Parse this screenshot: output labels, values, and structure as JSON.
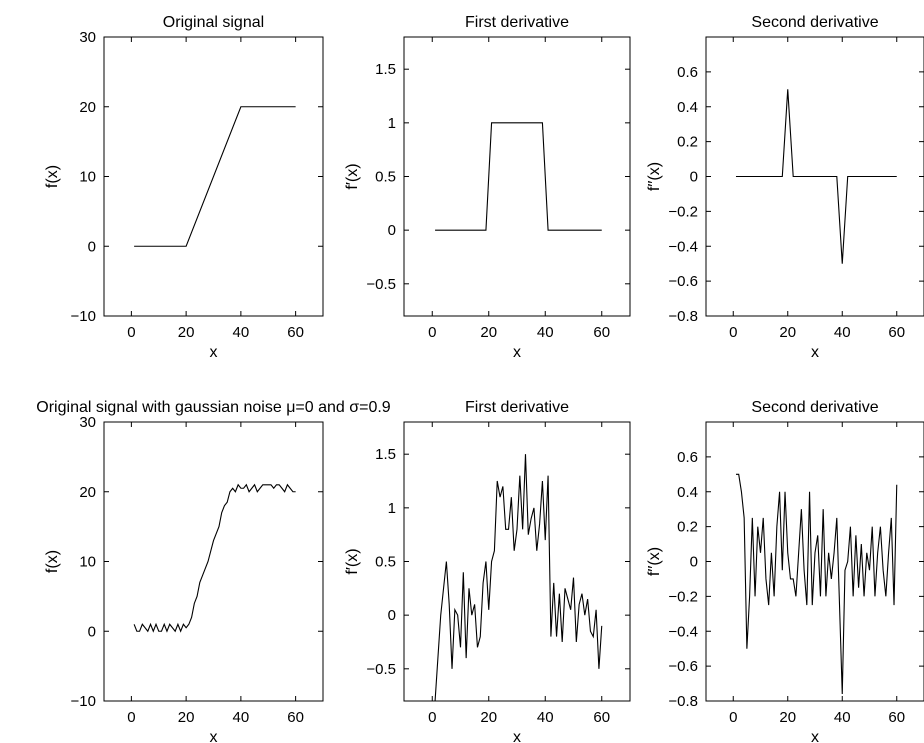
{
  "chart_data": [
    {
      "type": "line",
      "title": "Original signal",
      "xlabel": "x",
      "ylabel": "f(x)",
      "xlim": [
        -10,
        70
      ],
      "ylim": [
        -10,
        30
      ],
      "xticks": [
        0,
        20,
        40,
        60
      ],
      "yticks": [
        -10,
        0,
        10,
        20,
        30
      ],
      "xtick_labels": [
        "0",
        "20",
        "40",
        "60"
      ],
      "ytick_labels": [
        "−10",
        "0",
        "10",
        "20",
        "30"
      ],
      "grid": false,
      "series": [
        {
          "x": [
            1,
            20,
            40,
            60
          ],
          "y": [
            0,
            0,
            20,
            20
          ]
        }
      ]
    },
    {
      "type": "line",
      "title": "First derivative",
      "xlabel": "x",
      "ylabel": "f′(x)",
      "xlim": [
        -10,
        70
      ],
      "ylim": [
        -0.8,
        1.8
      ],
      "xticks": [
        0,
        20,
        40,
        60
      ],
      "yticks": [
        -0.5,
        0,
        0.5,
        1,
        1.5
      ],
      "xtick_labels": [
        "0",
        "20",
        "40",
        "60"
      ],
      "ytick_labels": [
        "−0.5",
        "0",
        "0.5",
        "1",
        "1.5"
      ],
      "grid": false,
      "series": [
        {
          "x": [
            1,
            19,
            21,
            39,
            41,
            60
          ],
          "y": [
            0,
            0,
            1,
            1,
            0,
            0
          ]
        }
      ]
    },
    {
      "type": "line",
      "title": "Second derivative",
      "xlabel": "x",
      "ylabel": "f′′(x)",
      "xlim": [
        -10,
        70
      ],
      "ylim": [
        -0.8,
        0.8
      ],
      "xticks": [
        0,
        20,
        40,
        60
      ],
      "yticks": [
        -0.8,
        -0.6,
        -0.4,
        -0.2,
        0,
        0.2,
        0.4,
        0.6
      ],
      "xtick_labels": [
        "0",
        "20",
        "40",
        "60"
      ],
      "ytick_labels": [
        "−0.8",
        "−0.6",
        "−0.4",
        "−0.2",
        "0",
        "0.2",
        "0.4",
        "0.6"
      ],
      "grid": false,
      "series": [
        {
          "x": [
            1,
            18,
            20,
            22,
            38,
            40,
            42,
            60
          ],
          "y": [
            0,
            0,
            0.5,
            0,
            0,
            -0.5,
            0,
            0
          ]
        }
      ]
    },
    {
      "type": "line",
      "title": "Original signal with gaussian noise μ=0 and σ=0.9",
      "xlabel": "x",
      "ylabel": "f(x)",
      "xlim": [
        -10,
        70
      ],
      "ylim": [
        -10,
        30
      ],
      "xticks": [
        0,
        20,
        40,
        60
      ],
      "yticks": [
        -10,
        0,
        10,
        20,
        30
      ],
      "xtick_labels": [
        "0",
        "20",
        "40",
        "60"
      ],
      "ytick_labels": [
        "−10",
        "0",
        "10",
        "20",
        "30"
      ],
      "grid": false,
      "series": [
        {
          "x": [
            1,
            2,
            3,
            4,
            5,
            6,
            7,
            8,
            9,
            10,
            11,
            12,
            13,
            14,
            15,
            16,
            17,
            18,
            19,
            20,
            21,
            22,
            23,
            24,
            25,
            26,
            27,
            28,
            29,
            30,
            31,
            32,
            33,
            34,
            35,
            36,
            37,
            38,
            39,
            40,
            41,
            42,
            43,
            44,
            45,
            46,
            47,
            48,
            49,
            50,
            51,
            52,
            53,
            54,
            55,
            56,
            57,
            58,
            59,
            60
          ],
          "y": [
            1,
            0,
            0,
            1,
            0.5,
            0,
            1,
            0,
            1,
            0,
            0,
            1,
            0,
            1,
            0.5,
            0,
            1,
            0,
            1,
            0.5,
            1,
            2,
            4,
            5,
            7,
            8,
            9,
            10,
            11.5,
            13,
            14,
            15,
            17,
            18,
            18.5,
            20,
            20.5,
            20,
            21,
            20.5,
            20.5,
            21,
            20,
            20.5,
            21,
            20,
            20.5,
            21,
            21,
            21,
            21,
            20.5,
            21,
            21,
            20.5,
            20,
            21,
            20.5,
            20,
            20
          ]
        }
      ]
    },
    {
      "type": "line",
      "title": "First derivative",
      "xlabel": "x",
      "ylabel": "f′(x)",
      "xlim": [
        -10,
        70
      ],
      "ylim": [
        -0.8,
        1.8
      ],
      "xticks": [
        0,
        20,
        40,
        60
      ],
      "yticks": [
        -0.5,
        0,
        0.5,
        1,
        1.5
      ],
      "xtick_labels": [
        "0",
        "20",
        "40",
        "60"
      ],
      "ytick_labels": [
        "−0.5",
        "0",
        "0.5",
        "1",
        "1.5"
      ],
      "grid": false,
      "series": [
        {
          "x": [
            1,
            2,
            3,
            4,
            5,
            6,
            7,
            8,
            9,
            10,
            11,
            12,
            13,
            14,
            15,
            16,
            17,
            18,
            19,
            20,
            21,
            22,
            23,
            24,
            25,
            26,
            27,
            28,
            29,
            30,
            31,
            32,
            33,
            34,
            35,
            36,
            37,
            38,
            39,
            40,
            41,
            42,
            43,
            44,
            45,
            46,
            47,
            48,
            49,
            50,
            51,
            52,
            53,
            54,
            55,
            56,
            57,
            58,
            59,
            60
          ],
          "y": [
            -0.8,
            -0.4,
            0,
            0.25,
            0.5,
            0.1,
            -0.5,
            0.05,
            0,
            -0.3,
            0.4,
            -0.4,
            0.25,
            0,
            0.1,
            -0.3,
            -0.2,
            0.3,
            0.5,
            0.05,
            0.5,
            0.6,
            1.25,
            1.1,
            1.2,
            0.8,
            0.8,
            1.1,
            0.6,
            0.8,
            1.3,
            0.8,
            1.5,
            0.75,
            0.9,
            1.0,
            0.6,
            0.85,
            1.25,
            0.7,
            1.3,
            -0.2,
            0.3,
            -0.2,
            0.2,
            -0.25,
            0.25,
            0.15,
            0.05,
            0.35,
            -0.25,
            0.1,
            0.2,
            0,
            0.15,
            -0.15,
            -0.2,
            0.05,
            -0.5,
            -0.1
          ]
        }
      ]
    },
    {
      "type": "line",
      "title": "Second derivative",
      "xlabel": "x",
      "ylabel": "f′′(x)",
      "xlim": [
        -10,
        70
      ],
      "ylim": [
        -0.8,
        0.8
      ],
      "xticks": [
        0,
        20,
        40,
        60
      ],
      "yticks": [
        -0.8,
        -0.6,
        -0.4,
        -0.2,
        0,
        0.2,
        0.4,
        0.6
      ],
      "xtick_labels": [
        "0",
        "20",
        "40",
        "60"
      ],
      "ytick_labels": [
        "−0.8",
        "−0.6",
        "−0.4",
        "−0.2",
        "0",
        "0.2",
        "0.4",
        "0.6"
      ],
      "grid": false,
      "series": [
        {
          "x": [
            1,
            2,
            3,
            4,
            5,
            6,
            7,
            8,
            9,
            10,
            11,
            12,
            13,
            14,
            15,
            16,
            17,
            18,
            19,
            20,
            21,
            22,
            23,
            24,
            25,
            26,
            27,
            28,
            29,
            30,
            31,
            32,
            33,
            34,
            35,
            36,
            37,
            38,
            39,
            40,
            41,
            42,
            43,
            44,
            45,
            46,
            47,
            48,
            49,
            50,
            51,
            52,
            53,
            54,
            55,
            56,
            57,
            58,
            59,
            60
          ],
          "y": [
            0.5,
            0.5,
            0.4,
            0.25,
            -0.5,
            -0.2,
            0.25,
            -0.2,
            0.2,
            0.05,
            0.25,
            -0.1,
            -0.25,
            0.05,
            -0.2,
            0.2,
            0.4,
            -0.05,
            0.4,
            0.05,
            -0.1,
            -0.1,
            -0.2,
            0.05,
            0.3,
            -0.05,
            -0.25,
            0.4,
            -0.25,
            0.05,
            0.15,
            -0.2,
            0.3,
            -0.2,
            0.05,
            -0.1,
            0.05,
            0.25,
            -0.25,
            -0.76,
            -0.05,
            0.0,
            0.2,
            -0.2,
            0.15,
            -0.15,
            0.1,
            -0.2,
            0.05,
            -0.05,
            0.2,
            -0.2,
            0.05,
            0.2,
            -0.05,
            -0.2,
            0.05,
            0.25,
            -0.25,
            0.44
          ]
        }
      ]
    }
  ]
}
